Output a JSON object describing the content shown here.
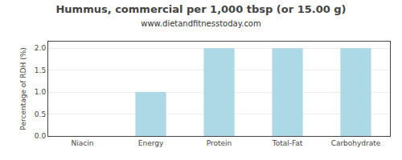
{
  "chart_data": {
    "type": "bar",
    "title": "Hummus, commercial per 1,000 tbsp (or 15.00 g)",
    "subtitle": "www.dietandfitnesstoday.com",
    "ylabel": "Percentage of RDH (%)",
    "categories": [
      "Niacin",
      "Energy",
      "Protein",
      "Total-Fat",
      "Carbohydrate"
    ],
    "values": [
      0.0,
      1.0,
      2.0,
      2.0,
      2.0
    ],
    "color": "#add8e6",
    "ylim": [
      0,
      2.15
    ],
    "yticks": [
      {
        "value": 0,
        "label": "0.0"
      },
      0.5,
      {
        "value": 1,
        "label": "1.0"
      },
      1.5,
      {
        "value": 2,
        "label": "2.0"
      }
    ],
    "grid": true
  }
}
